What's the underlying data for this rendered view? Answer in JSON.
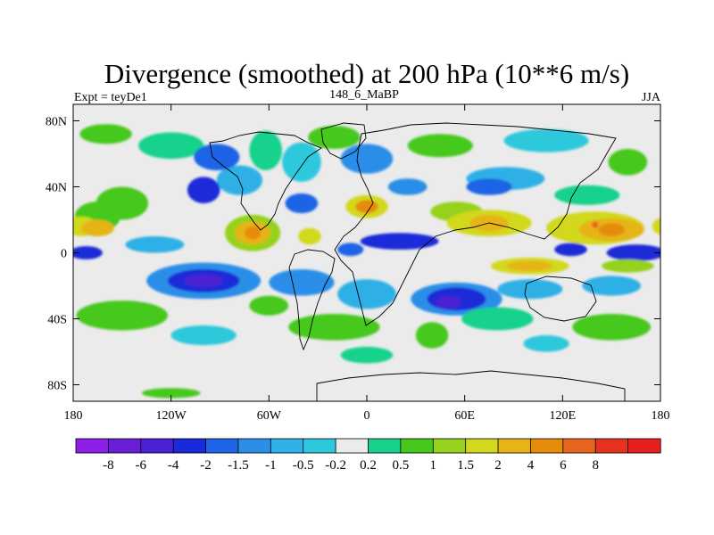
{
  "chart_data": {
    "type": "heatmap",
    "title": "Divergence (smoothed) at 200 hPa (10**6 m/s)",
    "subtitle_left": "Expt = teyDe1",
    "subtitle_center": "148_6_MaBP",
    "subtitle_right": "JJA",
    "x_range": [
      -180,
      180
    ],
    "y_range": [
      -90,
      90
    ],
    "x_ticks": [
      {
        "value": -180,
        "label": "180"
      },
      {
        "value": -120,
        "label": "120W"
      },
      {
        "value": -60,
        "label": "60W"
      },
      {
        "value": 0,
        "label": "0"
      },
      {
        "value": 60,
        "label": "60E"
      },
      {
        "value": 120,
        "label": "120E"
      },
      {
        "value": 180,
        "label": "180"
      }
    ],
    "y_ticks": [
      {
        "value": 80,
        "label": "80N"
      },
      {
        "value": 40,
        "label": "40N"
      },
      {
        "value": 0,
        "label": "0"
      },
      {
        "value": -40,
        "label": "40S"
      },
      {
        "value": -80,
        "label": "80S"
      }
    ],
    "colorbar": {
      "colors": [
        "#8c1ee6",
        "#6a1fd6",
        "#4b22d2",
        "#1a2ad8",
        "#1e64e6",
        "#2b8ee8",
        "#2fb0e6",
        "#2ec8dc",
        "#ebebeb",
        "#18d28c",
        "#46c81e",
        "#96d21e",
        "#d2d81e",
        "#e6b414",
        "#e68c0a",
        "#e6641e",
        "#e6321e",
        "#e61e1e"
      ],
      "labels": [
        "-8",
        "-6",
        "-4",
        "-2",
        "-1.5",
        "-1",
        "-0.5",
        "-0.2",
        "0.2",
        "0.5",
        "1",
        "1.5",
        "2",
        "4",
        "6",
        "8"
      ]
    },
    "blobs": [
      {
        "lon": -150,
        "lat": 30,
        "rlon": 16,
        "rlat": 10,
        "level": 10
      },
      {
        "lon": -160,
        "lat": 72,
        "rlon": 16,
        "rlat": 6,
        "level": 10
      },
      {
        "lon": -120,
        "lat": 65,
        "rlon": 20,
        "rlat": 8,
        "level": 9
      },
      {
        "lon": -78,
        "lat": 44,
        "rlon": 14,
        "rlat": 9,
        "level": 6
      },
      {
        "lon": -92,
        "lat": 58,
        "rlon": 14,
        "rlat": 8,
        "level": 4
      },
      {
        "lon": -62,
        "lat": 62,
        "rlon": 10,
        "rlat": 12,
        "level": 9
      },
      {
        "lon": -40,
        "lat": 55,
        "rlon": 12,
        "rlat": 12,
        "level": 7
      },
      {
        "lon": 0,
        "lat": 57,
        "rlon": 16,
        "rlat": 9,
        "level": 5
      },
      {
        "lon": -20,
        "lat": 70,
        "rlon": 16,
        "rlat": 7,
        "level": 10
      },
      {
        "lon": 45,
        "lat": 65,
        "rlon": 20,
        "rlat": 7,
        "level": 10
      },
      {
        "lon": 110,
        "lat": 68,
        "rlon": 26,
        "rlat": 7,
        "level": 7
      },
      {
        "lon": 160,
        "lat": 55,
        "rlon": 12,
        "rlat": 8,
        "level": 10
      },
      {
        "lon": 85,
        "lat": 45,
        "rlon": 24,
        "rlat": 7,
        "level": 6
      },
      {
        "lon": 135,
        "lat": 35,
        "rlon": 20,
        "rlat": 6,
        "level": 9
      },
      {
        "lon": -165,
        "lat": 22,
        "rlon": 14,
        "rlat": 9,
        "level": 10
      },
      {
        "lon": -175,
        "lat": 16,
        "rlon": 10,
        "rlat": 6,
        "level": 12
      },
      {
        "lon": -165,
        "lat": 15,
        "rlon": 10,
        "rlat": 5,
        "level": 13
      },
      {
        "lon": -70,
        "lat": 12,
        "rlon": 17,
        "rlat": 11,
        "level": 11
      },
      {
        "lon": -70,
        "lat": 12,
        "rlon": 11,
        "rlat": 7,
        "level": 13
      },
      {
        "lon": -70,
        "lat": 12,
        "rlon": 5,
        "rlat": 4,
        "level": 14
      },
      {
        "lon": -35,
        "lat": 10,
        "rlon": 7,
        "rlat": 5,
        "level": 12
      },
      {
        "lon": 0,
        "lat": 28,
        "rlon": 13,
        "rlat": 7,
        "level": 12
      },
      {
        "lon": 0,
        "lat": 28,
        "rlon": 7,
        "rlat": 4,
        "level": 14
      },
      {
        "lon": 55,
        "lat": 25,
        "rlon": 16,
        "rlat": 6,
        "level": 11
      },
      {
        "lon": 75,
        "lat": 18,
        "rlon": 26,
        "rlat": 8,
        "level": 12
      },
      {
        "lon": 75,
        "lat": 18,
        "rlon": 12,
        "rlat": 5,
        "level": 13
      },
      {
        "lon": 140,
        "lat": 15,
        "rlon": 30,
        "rlat": 10,
        "level": 12
      },
      {
        "lon": 150,
        "lat": 14,
        "rlon": 20,
        "rlat": 7,
        "level": 13
      },
      {
        "lon": 150,
        "lat": 14,
        "rlon": 8,
        "rlat": 4,
        "level": 14
      },
      {
        "lon": 140,
        "lat": 17,
        "rlon": 2,
        "rlat": 2,
        "level": 15
      },
      {
        "lon": -100,
        "lat": 38,
        "rlon": 10,
        "rlat": 8,
        "level": 3
      },
      {
        "lon": -40,
        "lat": 30,
        "rlon": 10,
        "rlat": 6,
        "level": 4
      },
      {
        "lon": 25,
        "lat": 40,
        "rlon": 12,
        "rlat": 5,
        "level": 5
      },
      {
        "lon": 75,
        "lat": 40,
        "rlon": 14,
        "rlat": 5,
        "level": 4
      },
      {
        "lon": 20,
        "lat": 7,
        "rlon": 24,
        "rlat": 5,
        "level": 3
      },
      {
        "lon": -10,
        "lat": 2,
        "rlon": 8,
        "rlat": 4,
        "level": 4
      },
      {
        "lon": 125,
        "lat": 2,
        "rlon": 10,
        "rlat": 4,
        "level": 3
      },
      {
        "lon": 165,
        "lat": 0,
        "rlon": 18,
        "rlat": 5,
        "level": 3
      },
      {
        "lon": -172,
        "lat": 0,
        "rlon": 10,
        "rlat": 4,
        "level": 3
      },
      {
        "lon": -130,
        "lat": 5,
        "rlon": 18,
        "rlat": 5,
        "level": 6
      },
      {
        "lon": -100,
        "lat": -17,
        "rlon": 35,
        "rlat": 11,
        "level": 5
      },
      {
        "lon": -100,
        "lat": -17,
        "rlon": 22,
        "rlat": 7,
        "level": 3
      },
      {
        "lon": -100,
        "lat": -17,
        "rlon": 12,
        "rlat": 4,
        "level": 2
      },
      {
        "lon": -40,
        "lat": -18,
        "rlon": 20,
        "rlat": 8,
        "level": 5
      },
      {
        "lon": 0,
        "lat": -25,
        "rlon": 18,
        "rlat": 9,
        "level": 6
      },
      {
        "lon": 55,
        "lat": -28,
        "rlon": 28,
        "rlat": 10,
        "level": 5
      },
      {
        "lon": 55,
        "lat": -28,
        "rlon": 18,
        "rlat": 7,
        "level": 3
      },
      {
        "lon": 50,
        "lat": -30,
        "rlon": 8,
        "rlat": 4,
        "level": 2
      },
      {
        "lon": 100,
        "lat": -22,
        "rlon": 20,
        "rlat": 6,
        "level": 6
      },
      {
        "lon": 150,
        "lat": -20,
        "rlon": 18,
        "rlat": 6,
        "level": 6
      },
      {
        "lon": 100,
        "lat": -8,
        "rlon": 24,
        "rlat": 5,
        "level": 12
      },
      {
        "lon": 100,
        "lat": -8,
        "rlon": 14,
        "rlat": 3,
        "level": 13
      },
      {
        "lon": 160,
        "lat": -8,
        "rlon": 16,
        "rlat": 4,
        "level": 11
      },
      {
        "lon": -150,
        "lat": -38,
        "rlon": 28,
        "rlat": 9,
        "level": 10
      },
      {
        "lon": -60,
        "lat": -32,
        "rlon": 12,
        "rlat": 6,
        "level": 10
      },
      {
        "lon": -20,
        "lat": -45,
        "rlon": 28,
        "rlat": 8,
        "level": 10
      },
      {
        "lon": 40,
        "lat": -50,
        "rlon": 10,
        "rlat": 8,
        "level": 10
      },
      {
        "lon": 80,
        "lat": -40,
        "rlon": 22,
        "rlat": 7,
        "level": 9
      },
      {
        "lon": 150,
        "lat": -45,
        "rlon": 24,
        "rlat": 8,
        "level": 10
      },
      {
        "lon": -100,
        "lat": -50,
        "rlon": 20,
        "rlat": 6,
        "level": 7
      },
      {
        "lon": 110,
        "lat": -55,
        "rlon": 14,
        "rlat": 5,
        "level": 7
      },
      {
        "lon": -120,
        "lat": -85,
        "rlon": 18,
        "rlat": 3,
        "level": 10
      },
      {
        "lon": 0,
        "lat": -62,
        "rlon": 16,
        "rlat": 5,
        "level": 9
      }
    ]
  }
}
